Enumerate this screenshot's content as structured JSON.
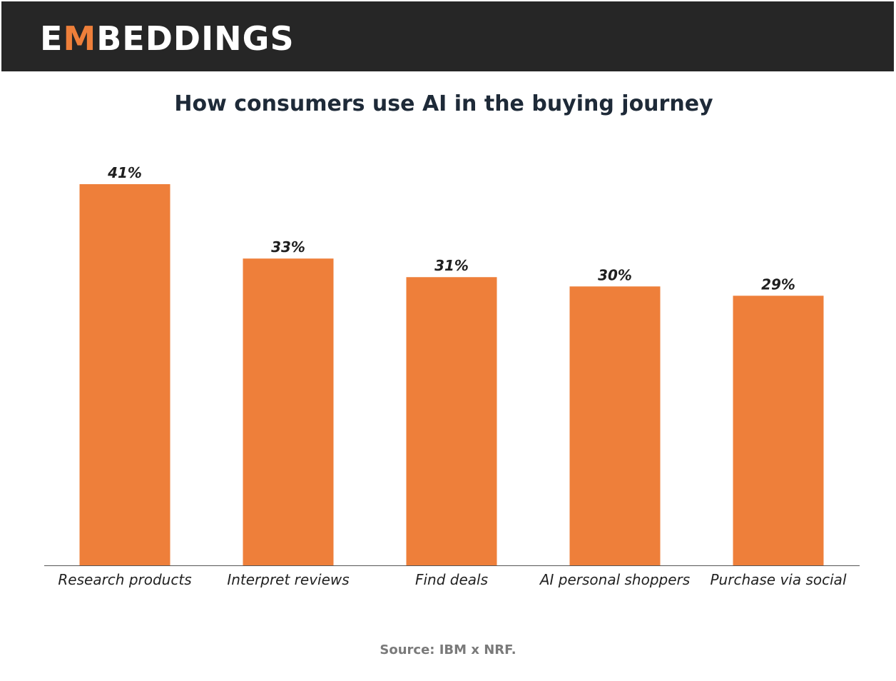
{
  "header": {
    "logo_text_prefix": "E",
    "logo_text_accent": "M",
    "logo_text_suffix": "BEDDINGS",
    "bar_color": "#262626",
    "accent_color": "#ee7f3a"
  },
  "chart_data": {
    "type": "bar",
    "title": "How consumers use AI in the buying journey",
    "categories": [
      "Research products",
      "Interpret reviews",
      "Find deals",
      "AI personal shoppers",
      "Purchase via social"
    ],
    "values": [
      41,
      33,
      31,
      30,
      29
    ],
    "value_labels": [
      "41%",
      "33%",
      "31%",
      "30%",
      "29%"
    ],
    "unit": "%",
    "xlabel": "",
    "ylabel": "",
    "ylim": [
      0,
      41
    ],
    "grid": false,
    "legend": "none",
    "bar_color": "#ee7f3a",
    "axis_color": "#555555"
  },
  "footer": {
    "source": "Source: IBM x NRF."
  }
}
